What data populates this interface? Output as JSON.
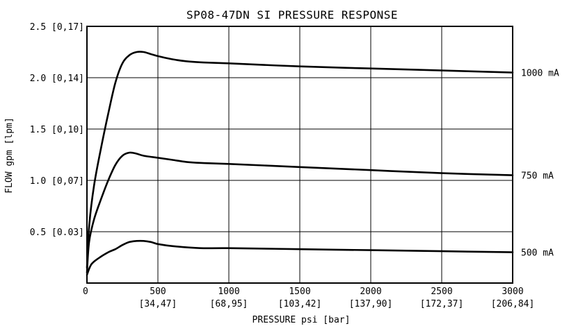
{
  "chart_data": {
    "type": "line",
    "title": "SP08-47DN SI PRESSURE RESPONSE",
    "xlabel": "PRESSURE psi [bar]",
    "ylabel": "FLOW gpm [lpm]",
    "xlim": [
      0,
      3000
    ],
    "ylim": [
      0,
      2.5
    ],
    "grid": true,
    "x_ticks": [
      {
        "value": 0,
        "label": "0",
        "sub": ""
      },
      {
        "value": 500,
        "label": "500",
        "sub": "[34,47]"
      },
      {
        "value": 1000,
        "label": "1000",
        "sub": "[68,95]"
      },
      {
        "value": 1500,
        "label": "1500",
        "sub": "[103,42]"
      },
      {
        "value": 2000,
        "label": "2000",
        "sub": "[137,90]"
      },
      {
        "value": 2500,
        "label": "2500",
        "sub": "[172,37]"
      },
      {
        "value": 3000,
        "label": "3000",
        "sub": "[206,84]"
      }
    ],
    "y_ticks": [
      {
        "value": 0.5,
        "label": "0.5 [0.03]"
      },
      {
        "value": 1.0,
        "label": "1.0 [0,07]"
      },
      {
        "value": 1.5,
        "label": "1.5 [0,10]"
      },
      {
        "value": 2.0,
        "label": "2.0 [0,14]"
      },
      {
        "value": 2.5,
        "label": "2.5 [0,17]"
      }
    ],
    "series": [
      {
        "name": "1000 mA",
        "x": [
          0,
          15,
          50,
          100,
          150,
          200,
          250,
          300,
          350,
          400,
          450,
          500,
          600,
          700,
          800,
          1000,
          1500,
          2000,
          2500,
          3000
        ],
        "y": [
          0.15,
          0.55,
          0.95,
          1.32,
          1.65,
          1.95,
          2.14,
          2.22,
          2.25,
          2.25,
          2.23,
          2.21,
          2.18,
          2.16,
          2.15,
          2.14,
          2.11,
          2.09,
          2.07,
          2.05
        ]
      },
      {
        "name": "750 mA",
        "x": [
          0,
          15,
          50,
          100,
          150,
          200,
          250,
          300,
          350,
          400,
          500,
          600,
          700,
          800,
          1000,
          1500,
          2000,
          2500,
          3000
        ],
        "y": [
          0.1,
          0.4,
          0.62,
          0.82,
          1.0,
          1.15,
          1.24,
          1.27,
          1.26,
          1.24,
          1.22,
          1.2,
          1.18,
          1.17,
          1.16,
          1.13,
          1.1,
          1.07,
          1.05
        ]
      },
      {
        "name": "500 mA",
        "x": [
          0,
          30,
          80,
          150,
          200,
          250,
          300,
          350,
          400,
          450,
          500,
          600,
          800,
          1000,
          1500,
          2000,
          2500,
          3000
        ],
        "y": [
          0.08,
          0.18,
          0.24,
          0.3,
          0.33,
          0.37,
          0.4,
          0.41,
          0.41,
          0.4,
          0.38,
          0.36,
          0.34,
          0.34,
          0.33,
          0.32,
          0.31,
          0.3
        ]
      }
    ],
    "series_labels": [
      "1000 mA",
      "750 mA",
      "500 mA"
    ]
  }
}
